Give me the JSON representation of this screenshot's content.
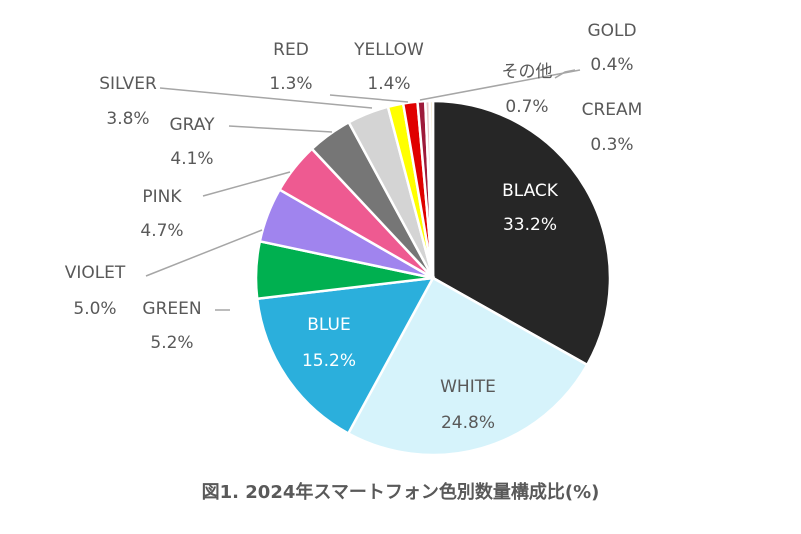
{
  "chart_data": {
    "type": "pie",
    "title": "図1. 2024年スマートフォン色別数量構成比(%)",
    "slices": [
      {
        "label": "BLACK",
        "value": 33.2,
        "display": "33.2%",
        "color": "#262626"
      },
      {
        "label": "WHITE",
        "value": 24.8,
        "display": "24.8%",
        "color": "#d6f3fb"
      },
      {
        "label": "BLUE",
        "value": 15.2,
        "display": "15.2%",
        "color": "#2bafdc"
      },
      {
        "label": "GREEN",
        "value": 5.2,
        "display": "5.2%",
        "color": "#00b050"
      },
      {
        "label": "VIOLET",
        "value": 5.0,
        "display": "5.0%",
        "color": "#a084ee"
      },
      {
        "label": "PINK",
        "value": 4.7,
        "display": "4.7%",
        "color": "#ee5a91"
      },
      {
        "label": "GRAY",
        "value": 4.1,
        "display": "4.1%",
        "color": "#767676"
      },
      {
        "label": "SILVER",
        "value": 3.8,
        "display": "3.8%",
        "color": "#d4d4d4"
      },
      {
        "label": "YELLOW",
        "value": 1.4,
        "display": "1.4%",
        "color": "#ffff00"
      },
      {
        "label": "RED",
        "value": 1.3,
        "display": "1.3%",
        "color": "#e00000"
      },
      {
        "label": "その他",
        "value": 0.7,
        "display": "0.7%",
        "color": "#9e1a3a"
      },
      {
        "label": "GOLD",
        "value": 0.4,
        "display": "0.4%",
        "color": "#e8c9c9"
      },
      {
        "label": "CREAM",
        "value": 0.3,
        "display": "0.3%",
        "color": "#f2e6c8"
      }
    ]
  }
}
